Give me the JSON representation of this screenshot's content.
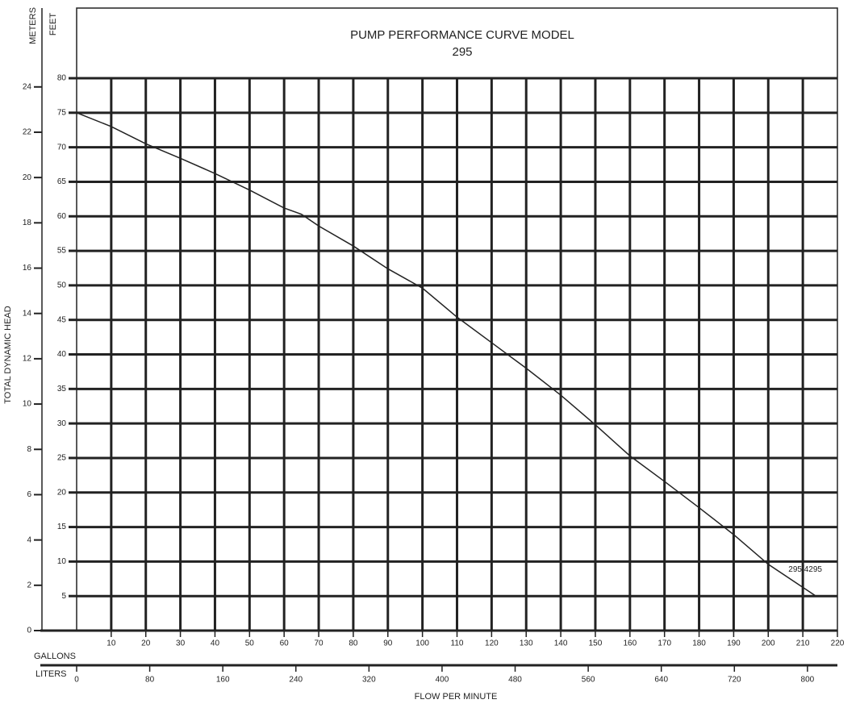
{
  "chart_data": {
    "type": "line",
    "title": "PUMP PERFORMANCE CURVE MODEL",
    "subtitle": "295",
    "y_label": "TOTAL DYNAMIC HEAD",
    "y_unit": "FEET",
    "y2_unit": "METERS",
    "x_unit": "GALLONS",
    "x2_unit": "LITERS",
    "x_label": "FLOW PER MINUTE",
    "x": [
      0,
      10,
      20,
      30,
      40,
      50,
      60,
      65,
      70,
      80,
      90,
      100,
      110,
      120,
      130,
      140,
      150,
      160,
      170,
      180,
      190,
      200,
      213.5
    ],
    "series": [
      {
        "name": "295/4295",
        "color": "#222222",
        "values": [
          75,
          73,
          70.5,
          68.4,
          66.2,
          63.8,
          61.2,
          60.3,
          58.6,
          55.7,
          52.4,
          49.6,
          45.4,
          41.7,
          38,
          34.1,
          29.8,
          25.3,
          21.6,
          17.8,
          13.9,
          9.6,
          5.1
        ]
      }
    ],
    "xlim": [
      0,
      220
    ],
    "xticks": [
      10,
      20,
      30,
      40,
      50,
      60,
      70,
      80,
      90,
      100,
      110,
      120,
      130,
      140,
      150,
      160,
      170,
      180,
      190,
      200,
      210,
      220
    ],
    "x2lim": [
      0,
      832.79
    ],
    "x2ticks": [
      0,
      80,
      160,
      240,
      320,
      400,
      480,
      560,
      640,
      720,
      800
    ],
    "ylim": [
      0,
      80
    ],
    "yticks": [
      5,
      10,
      15,
      20,
      25,
      30,
      35,
      40,
      45,
      50,
      55,
      60,
      65,
      70,
      75,
      80
    ],
    "y2lim": [
      0,
      24.384
    ],
    "y2ticks": [
      0,
      2,
      4,
      6,
      8,
      10,
      12,
      14,
      16,
      18,
      20,
      22,
      24
    ],
    "grid": true
  }
}
